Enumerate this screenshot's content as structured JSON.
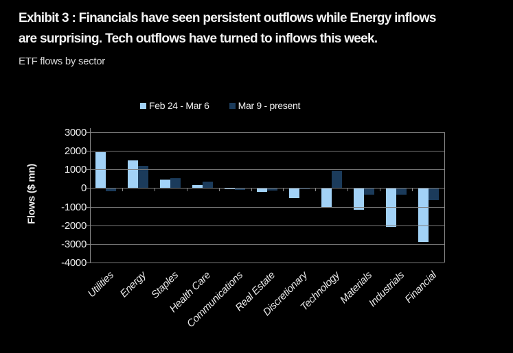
{
  "header": {
    "title_line1": "Exhibit 3 : Financials have seen persistent outflows while Energy inflows",
    "title_line2": "are surprising. Tech outflows have turned to inflows this week.",
    "subtitle": "ETF flows by sector"
  },
  "colors": {
    "background": "#000000",
    "series_light": "#A2D2F7",
    "series_dark": "#1B3B5B",
    "grid": "#7d7d7d",
    "text": "#f2f2f2"
  },
  "chart_data": {
    "type": "bar",
    "title": "ETF flows by sector",
    "xlabel": "",
    "ylabel": "Flows ($ mn)",
    "ylim": [
      -4000,
      3000
    ],
    "ytick_step": 1000,
    "grid": true,
    "legend_position": "top",
    "categories": [
      "Utilities",
      "Energy",
      "Staples",
      "Health Care",
      "Communications",
      "Real Estate",
      "Discretionary",
      "Technology",
      "Materials",
      "Industrials",
      "Financial"
    ],
    "series": [
      {
        "name": "Feb 24 - Mar 6",
        "color": "#A2D2F7",
        "values": [
          1950,
          1500,
          450,
          180,
          -70,
          -200,
          -520,
          -1000,
          -1150,
          -2100,
          -2900
        ]
      },
      {
        "name": "Mar 9 - present",
        "color": "#1B3B5B",
        "values": [
          -180,
          1200,
          550,
          360,
          -100,
          -120,
          -70,
          930,
          -350,
          -350,
          -650
        ]
      }
    ]
  }
}
